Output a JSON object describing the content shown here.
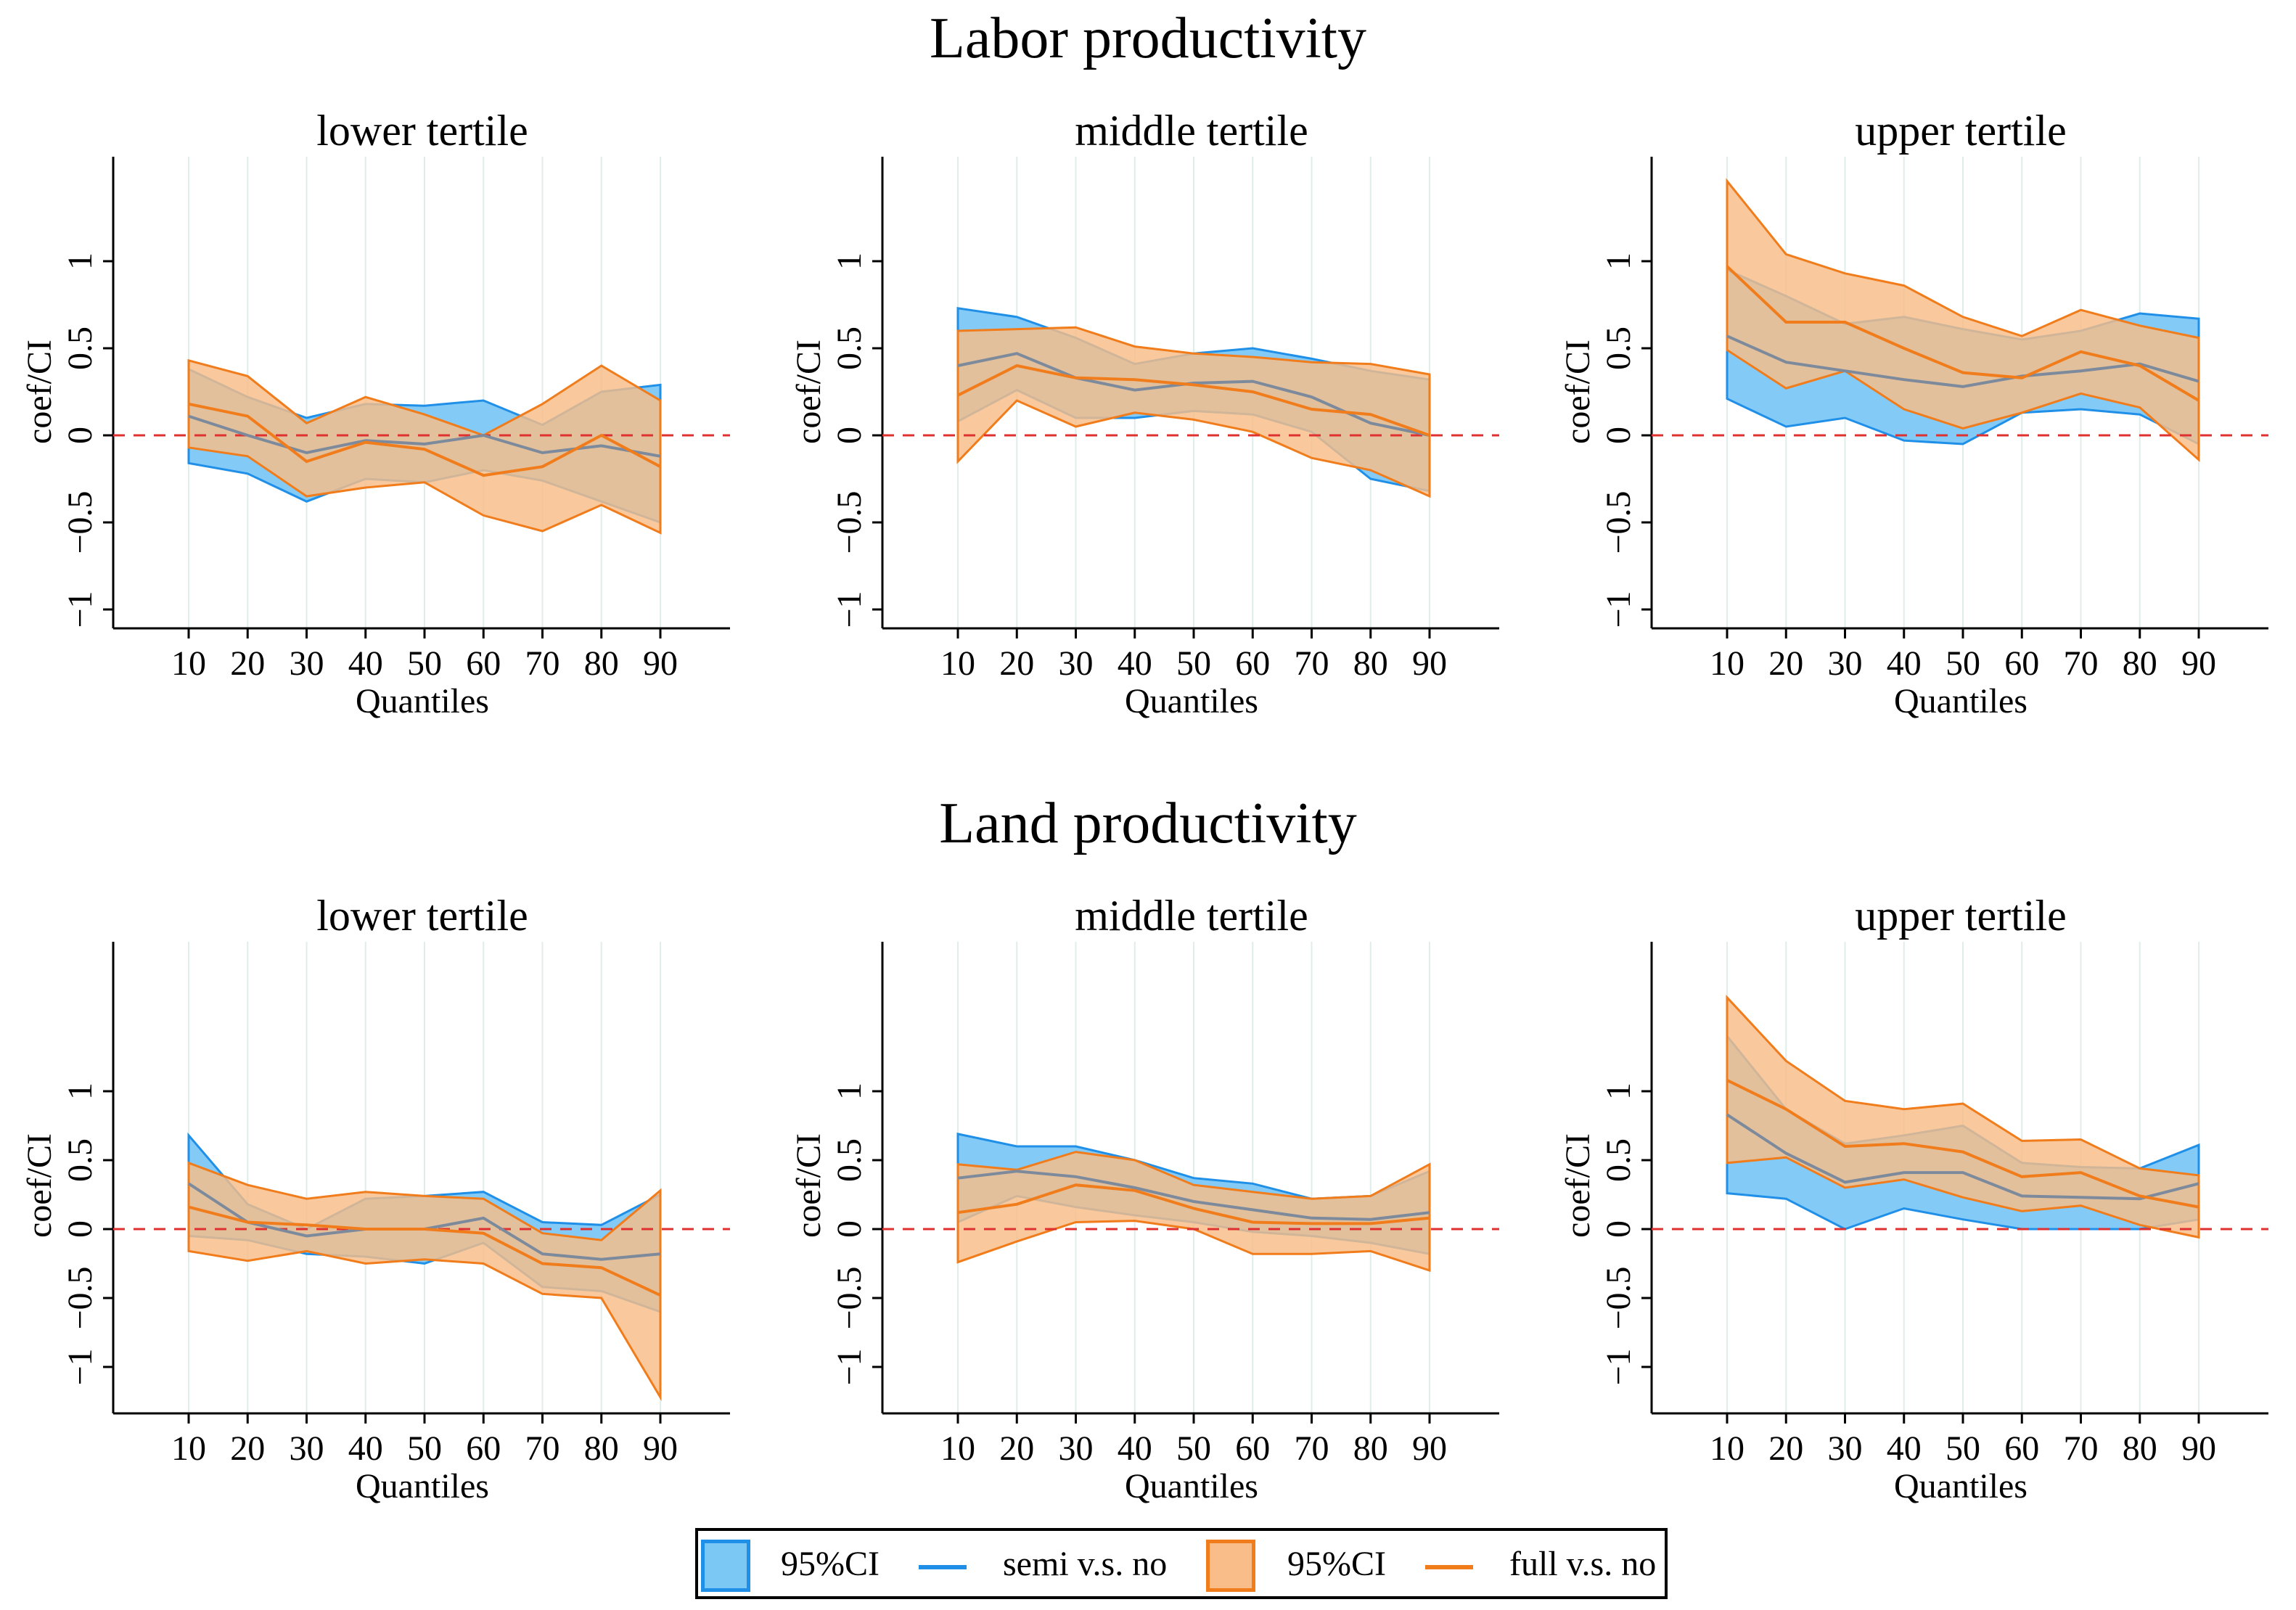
{
  "figure": {
    "group_titles": [
      "Labor productivity",
      "Land productivity"
    ]
  },
  "legend": {
    "semi_ci": "95%CI",
    "semi_line": "semi v.s. no",
    "full_ci": "95%CI",
    "full_line": "full v.s. no"
  },
  "colors": {
    "semi": "#1f8fe8",
    "semi_fill": "#7cc8f5",
    "full": "#f07c1b",
    "full_fill": "#f8bd88",
    "overlap": "#c8ad98",
    "zero_line": "#e03131"
  },
  "chart_data": [
    {
      "type": "area",
      "group": "Labor productivity",
      "title": "lower tertile",
      "xlabel": "Quantiles",
      "ylabel": "coef/CI",
      "x": [
        10,
        20,
        30,
        40,
        50,
        60,
        70,
        80,
        90
      ],
      "yticks": [
        1,
        0.5,
        0,
        -0.5,
        -1
      ],
      "ytick_labels": [
        "1",
        "0.5",
        "0",
        "−0.5",
        "−1"
      ],
      "ylim": [
        -1.1,
        1.55
      ],
      "series": [
        {
          "name": "semi v.s. no",
          "coef": [
            0.11,
            0.0,
            -0.1,
            -0.03,
            -0.05,
            0.0,
            -0.1,
            -0.06,
            -0.12
          ],
          "lower": [
            -0.16,
            -0.22,
            -0.38,
            -0.25,
            -0.27,
            -0.2,
            -0.26,
            -0.38,
            -0.5
          ],
          "upper": [
            0.38,
            0.22,
            0.1,
            0.18,
            0.17,
            0.2,
            0.06,
            0.25,
            0.29
          ]
        },
        {
          "name": "full v.s. no",
          "coef": [
            0.18,
            0.11,
            -0.15,
            -0.04,
            -0.08,
            -0.23,
            -0.18,
            0.0,
            -0.18
          ],
          "lower": [
            -0.07,
            -0.12,
            -0.35,
            -0.3,
            -0.27,
            -0.46,
            -0.55,
            -0.4,
            -0.56
          ],
          "upper": [
            0.43,
            0.34,
            0.07,
            0.22,
            0.12,
            0.0,
            0.18,
            0.4,
            0.2
          ]
        }
      ]
    },
    {
      "type": "area",
      "group": "Labor productivity",
      "title": "middle tertile",
      "xlabel": "Quantiles",
      "ylabel": "coef/CI",
      "x": [
        10,
        20,
        30,
        40,
        50,
        60,
        70,
        80,
        90
      ],
      "yticks": [
        1,
        0.5,
        0,
        -0.5,
        -1
      ],
      "ytick_labels": [
        "1",
        "0.5",
        "0",
        "−0.5",
        "−1"
      ],
      "ylim": [
        -1.1,
        1.55
      ],
      "series": [
        {
          "name": "semi v.s. no",
          "coef": [
            0.4,
            0.47,
            0.33,
            0.26,
            0.3,
            0.31,
            0.22,
            0.07,
            0.0
          ],
          "lower": [
            0.08,
            0.26,
            0.1,
            0.1,
            0.14,
            0.12,
            0.02,
            -0.25,
            -0.32
          ],
          "upper": [
            0.73,
            0.68,
            0.56,
            0.41,
            0.47,
            0.5,
            0.44,
            0.37,
            0.32
          ]
        },
        {
          "name": "full v.s. no",
          "coef": [
            0.23,
            0.4,
            0.33,
            0.32,
            0.29,
            0.25,
            0.15,
            0.12,
            0.0
          ],
          "lower": [
            -0.15,
            0.2,
            0.05,
            0.13,
            0.09,
            0.02,
            -0.13,
            -0.2,
            -0.35
          ],
          "upper": [
            0.6,
            0.61,
            0.62,
            0.51,
            0.47,
            0.45,
            0.42,
            0.41,
            0.35
          ]
        }
      ]
    },
    {
      "type": "area",
      "group": "Labor productivity",
      "title": "upper tertile",
      "xlabel": "Quantiles",
      "ylabel": "coef/CI",
      "x": [
        10,
        20,
        30,
        40,
        50,
        60,
        70,
        80,
        90
      ],
      "yticks": [
        1,
        0.5,
        0,
        -0.5,
        -1
      ],
      "ytick_labels": [
        "1",
        "0.5",
        "0",
        "−0.5",
        "−1"
      ],
      "ylim": [
        -1.1,
        1.55
      ],
      "series": [
        {
          "name": "semi v.s. no",
          "coef": [
            0.57,
            0.42,
            0.37,
            0.32,
            0.28,
            0.34,
            0.37,
            0.41,
            0.31
          ],
          "lower": [
            0.21,
            0.05,
            0.1,
            -0.03,
            -0.05,
            0.13,
            0.15,
            0.12,
            -0.05
          ],
          "upper": [
            0.95,
            0.8,
            0.64,
            0.68,
            0.61,
            0.55,
            0.6,
            0.7,
            0.67
          ]
        },
        {
          "name": "full v.s. no",
          "coef": [
            0.97,
            0.65,
            0.65,
            0.5,
            0.36,
            0.33,
            0.48,
            0.4,
            0.2
          ],
          "lower": [
            0.49,
            0.27,
            0.37,
            0.15,
            0.04,
            0.13,
            0.24,
            0.16,
            -0.14
          ],
          "upper": [
            1.46,
            1.04,
            0.93,
            0.86,
            0.68,
            0.57,
            0.72,
            0.63,
            0.56
          ]
        }
      ]
    },
    {
      "type": "area",
      "group": "Land productivity",
      "title": "lower tertile",
      "xlabel": "Quantiles",
      "ylabel": "coef/CI",
      "x": [
        10,
        20,
        30,
        40,
        50,
        60,
        70,
        80,
        90
      ],
      "yticks": [
        1,
        0.5,
        0,
        -0.5,
        -1
      ],
      "ytick_labels": [
        "1",
        "0.5",
        "0",
        "−0.5",
        "−1"
      ],
      "ylim": [
        -1.35,
        2.1
      ],
      "series": [
        {
          "name": "semi v.s. no",
          "coef": [
            0.33,
            0.05,
            -0.05,
            0.0,
            0.0,
            0.08,
            -0.18,
            -0.22,
            -0.18
          ],
          "lower": [
            -0.05,
            -0.08,
            -0.18,
            -0.2,
            -0.25,
            -0.1,
            -0.42,
            -0.45,
            -0.6
          ],
          "upper": [
            0.68,
            0.18,
            0.0,
            0.22,
            0.24,
            0.27,
            0.05,
            0.03,
            0.25
          ]
        },
        {
          "name": "full v.s. no",
          "coef": [
            0.16,
            0.05,
            0.03,
            0.0,
            0.0,
            -0.03,
            -0.25,
            -0.28,
            -0.48
          ],
          "lower": [
            -0.16,
            -0.23,
            -0.16,
            -0.25,
            -0.22,
            -0.25,
            -0.47,
            -0.5,
            -1.22
          ],
          "upper": [
            0.48,
            0.32,
            0.22,
            0.27,
            0.24,
            0.22,
            -0.03,
            -0.08,
            0.28
          ]
        }
      ]
    },
    {
      "type": "area",
      "group": "Land productivity",
      "title": "middle tertile",
      "xlabel": "Quantiles",
      "ylabel": "coef/CI",
      "x": [
        10,
        20,
        30,
        40,
        50,
        60,
        70,
        80,
        90
      ],
      "yticks": [
        1,
        0.5,
        0,
        -0.5,
        -1
      ],
      "ytick_labels": [
        "1",
        "0.5",
        "0",
        "−0.5",
        "−1"
      ],
      "ylim": [
        -1.35,
        2.1
      ],
      "series": [
        {
          "name": "semi v.s. no",
          "coef": [
            0.37,
            0.42,
            0.38,
            0.3,
            0.2,
            0.14,
            0.08,
            0.07,
            0.12
          ],
          "lower": [
            0.05,
            0.24,
            0.16,
            0.1,
            0.05,
            -0.02,
            -0.05,
            -0.1,
            -0.18
          ],
          "upper": [
            0.69,
            0.6,
            0.6,
            0.5,
            0.37,
            0.33,
            0.22,
            0.24,
            0.42
          ]
        },
        {
          "name": "full v.s. no",
          "coef": [
            0.12,
            0.18,
            0.32,
            0.28,
            0.15,
            0.05,
            0.04,
            0.04,
            0.08
          ],
          "lower": [
            -0.24,
            -0.09,
            0.05,
            0.06,
            0.0,
            -0.18,
            -0.18,
            -0.16,
            -0.3
          ],
          "upper": [
            0.47,
            0.43,
            0.56,
            0.5,
            0.32,
            0.27,
            0.22,
            0.24,
            0.47
          ]
        }
      ]
    },
    {
      "type": "area",
      "group": "Land productivity",
      "title": "upper tertile",
      "xlabel": "Quantiles",
      "ylabel": "coef/CI",
      "x": [
        10,
        20,
        30,
        40,
        50,
        60,
        70,
        80,
        90
      ],
      "yticks": [
        1,
        0.5,
        0,
        -0.5,
        -1
      ],
      "ytick_labels": [
        "1",
        "0.5",
        "0",
        "−0.5",
        "−1"
      ],
      "ylim": [
        -1.35,
        2.1
      ],
      "series": [
        {
          "name": "semi v.s. no",
          "coef": [
            0.83,
            0.55,
            0.34,
            0.41,
            0.41,
            0.24,
            0.23,
            0.22,
            0.33
          ],
          "lower": [
            0.26,
            0.22,
            0.0,
            0.15,
            0.07,
            0.0,
            0.0,
            0.0,
            0.07
          ],
          "upper": [
            1.4,
            0.87,
            0.62,
            0.68,
            0.75,
            0.48,
            0.45,
            0.44,
            0.61
          ]
        },
        {
          "name": "full v.s. no",
          "coef": [
            1.08,
            0.87,
            0.6,
            0.62,
            0.56,
            0.38,
            0.41,
            0.24,
            0.16
          ],
          "lower": [
            0.48,
            0.52,
            0.3,
            0.36,
            0.23,
            0.13,
            0.17,
            0.03,
            -0.06
          ],
          "upper": [
            1.68,
            1.22,
            0.93,
            0.87,
            0.91,
            0.64,
            0.65,
            0.44,
            0.39
          ]
        }
      ]
    }
  ]
}
